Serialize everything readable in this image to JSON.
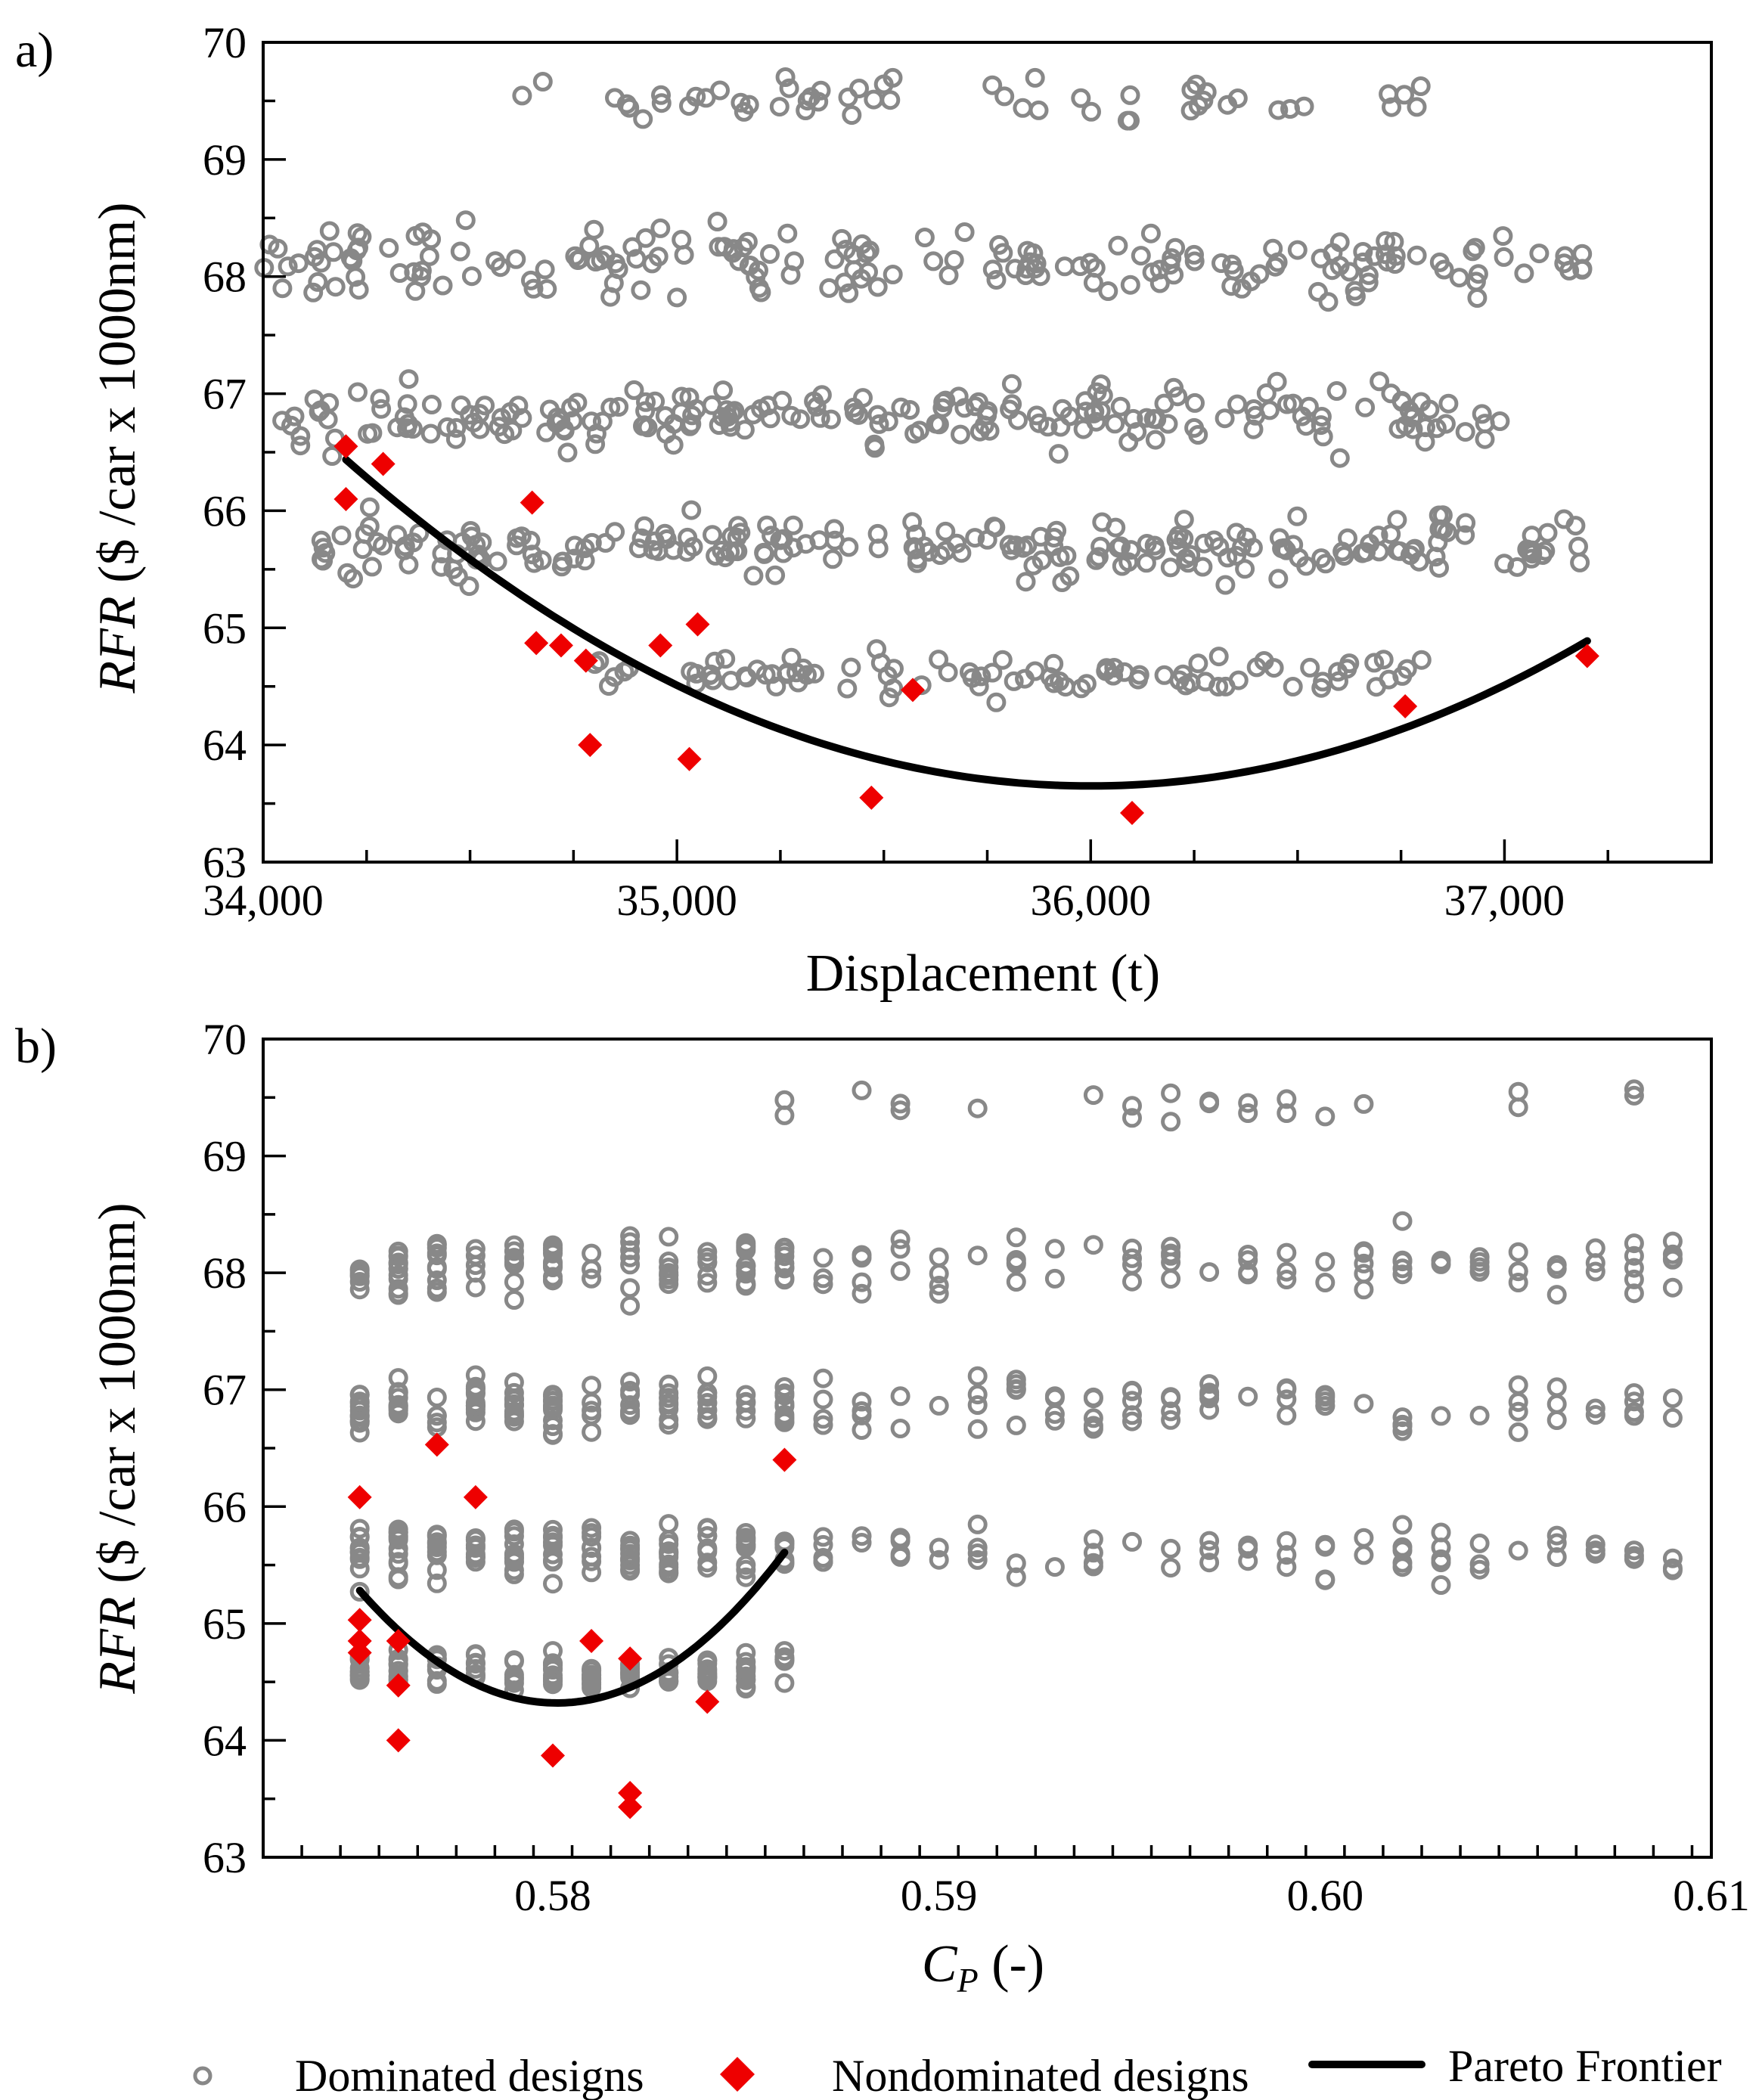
{
  "chart_data": [
    {
      "type": "scatter",
      "panel_label": "a)",
      "xlabel": "Displacement (t)",
      "ylabel_italic": "RFR",
      "ylabel_rest": " ($ /car x 1000nm)",
      "xlim": [
        34000,
        37500
      ],
      "ylim": [
        63,
        70
      ],
      "x_ticks": [
        34000,
        35000,
        36000,
        37000
      ],
      "x_tick_labels": [
        "34,000",
        "35,000",
        "36,000",
        "37,000"
      ],
      "y_ticks": [
        63,
        64,
        65,
        66,
        67,
        68,
        69,
        70
      ],
      "y_tick_labels": [
        "63",
        "64",
        "65",
        "66",
        "67",
        "68",
        "69",
        "70"
      ],
      "x_minor_step": 250,
      "y_minor_step": 0.5,
      "nondominated": [
        [
          34200,
          66.55
        ],
        [
          34200,
          66.1
        ],
        [
          34290,
          66.4
        ],
        [
          34650,
          66.07
        ],
        [
          34660,
          64.87
        ],
        [
          34720,
          64.85
        ],
        [
          34780,
          64.72
        ],
        [
          34790,
          64.0
        ],
        [
          34960,
          64.85
        ],
        [
          35030,
          63.88
        ],
        [
          35050,
          65.03
        ],
        [
          35470,
          63.55
        ],
        [
          35570,
          64.47
        ],
        [
          36100,
          63.42
        ],
        [
          36760,
          64.33
        ],
        [
          37200,
          64.76
        ]
      ],
      "pareto_curve": {
        "x_min": 34200,
        "x_max": 37200,
        "x_vertex": 36000,
        "y_vertex": 63.65,
        "curvature": 8.6e-07
      },
      "dominated_generator": {
        "seed": 7,
        "count": 760,
        "x_range": [
          34000,
          37200
        ],
        "clusters": [
          {
            "center": 69.5,
            "spread": 0.2,
            "weight": 0.09,
            "x_range": [
              34600,
              36800
            ]
          },
          {
            "center": 68.1,
            "spread": 0.3,
            "weight": 0.25,
            "x_range": [
              34000,
              37200
            ]
          },
          {
            "center": 66.8,
            "spread": 0.25,
            "weight": 0.27,
            "x_range": [
              34000,
              37000
            ]
          },
          {
            "center": 65.7,
            "spread": 0.25,
            "weight": 0.27,
            "x_range": [
              34100,
              37200
            ]
          },
          {
            "center": 64.6,
            "spread": 0.17,
            "weight": 0.12,
            "x_range": [
              34800,
              36800
            ]
          }
        ]
      }
    },
    {
      "type": "scatter",
      "panel_label": "b)",
      "xlabel_italic": "C",
      "xlabel_sub": "P",
      "xlabel_rest": " (-)",
      "ylabel_italic": "RFR",
      "ylabel_rest": " ($ /car x 1000nm)",
      "xlim": [
        0.5725,
        0.61
      ],
      "ylim": [
        63,
        70
      ],
      "x_ticks": [
        0.58,
        0.59,
        0.6,
        0.61
      ],
      "x_tick_labels": [
        "0.58",
        "0.59",
        "0.60",
        "0.61"
      ],
      "y_ticks": [
        63,
        64,
        65,
        66,
        67,
        68,
        69,
        70
      ],
      "y_tick_labels": [
        "63",
        "64",
        "65",
        "66",
        "67",
        "68",
        "69",
        "70"
      ],
      "x_minor_step": 0.001,
      "y_minor_step": 0.5,
      "nondominated": [
        [
          0.575,
          66.08
        ],
        [
          0.575,
          65.03
        ],
        [
          0.575,
          64.85
        ],
        [
          0.575,
          64.75
        ],
        [
          0.576,
          64.85
        ],
        [
          0.576,
          64.47
        ],
        [
          0.576,
          64.0
        ],
        [
          0.577,
          66.53
        ],
        [
          0.578,
          66.08
        ],
        [
          0.58,
          63.87
        ],
        [
          0.581,
          64.85
        ],
        [
          0.582,
          64.7
        ],
        [
          0.582,
          63.55
        ],
        [
          0.582,
          63.43
        ],
        [
          0.584,
          64.33
        ],
        [
          0.586,
          66.4
        ]
      ],
      "pareto_curve": {
        "x_min": 0.575,
        "x_max": 0.586,
        "x_vertex": 0.5801,
        "y_vertex": 64.32,
        "curvature": 37000
      },
      "dominated_generator": {
        "seed": 11,
        "columns_start": 0.575,
        "columns_end": 0.609,
        "columns_step": 0.001,
        "dense_until": 0.586,
        "clusters": [
          {
            "center": 69.45,
            "spread": 0.2,
            "from": 0.581
          },
          {
            "center": 68.05,
            "spread": 0.25,
            "from": 0.575
          },
          {
            "center": 66.85,
            "spread": 0.22,
            "from": 0.575
          },
          {
            "center": 65.6,
            "spread": 0.25,
            "from": 0.575
          },
          {
            "center": 64.6,
            "spread": 0.15,
            "from": 0.575,
            "to": 0.586
          }
        ]
      }
    }
  ],
  "legend": {
    "dominated_label": "Dominated designs",
    "nondominated_label": "Nondominated designs",
    "pareto_label": "Pareto Frontier"
  },
  "colors": {
    "dominated": "#888888",
    "nondominated": "#ee0000",
    "curve": "#000000"
  }
}
